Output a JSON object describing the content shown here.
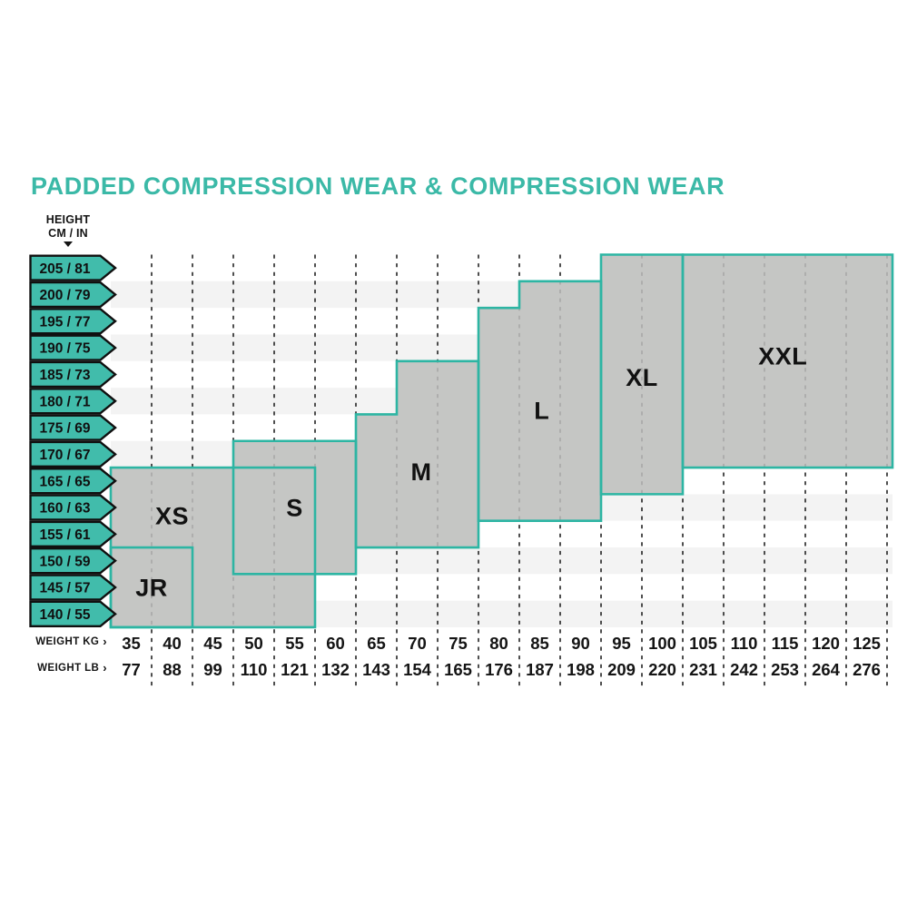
{
  "title": {
    "text": "PADDED COMPRESSION WEAR & COMPRESSION WEAR"
  },
  "chart_data": {
    "type": "size-region-grid",
    "title": "PADDED COMPRESSION WEAR & COMPRESSION WEAR",
    "coordinate_note": "outline vertices are [column_boundary, row_boundary]; columns 0-19 are boundaries between the 19 weight ticks ('R' = right plot edge); rows 0-14 are boundaries between the 14 height rows (row 0 = top, 205/81)",
    "y_axis": {
      "header_line1": "HEIGHT",
      "header_line2": "CM / IN",
      "labels": [
        "205 / 81",
        "200 / 79",
        "195 / 77",
        "190 / 75",
        "185 / 73",
        "180 / 71",
        "175 / 69",
        "170 / 67",
        "165 / 65",
        "160 / 63",
        "155 / 61",
        "150 / 59",
        "145 / 57",
        "140 / 55"
      ]
    },
    "x_axis": {
      "kg_label": "WEIGHT KG",
      "lb_label": "WEIGHT LB",
      "chevron_icon": "›",
      "weight_kg": [
        35,
        40,
        45,
        50,
        55,
        60,
        65,
        70,
        75,
        80,
        85,
        90,
        95,
        100,
        105,
        110,
        115,
        120,
        125
      ],
      "weight_lb": [
        77,
        88,
        99,
        110,
        121,
        132,
        143,
        154,
        165,
        176,
        187,
        198,
        209,
        220,
        231,
        242,
        253,
        264,
        276
      ]
    },
    "sizes": [
      {
        "label": "JR",
        "weight_kg_range": [
          35,
          40
        ],
        "height_cm_range": [
          140,
          150
        ],
        "outline": [
          [
            0,
            11
          ],
          [
            2,
            11
          ],
          [
            2,
            14
          ],
          [
            0,
            14
          ]
        ],
        "label_anchor": [
          1.0,
          12.5
        ]
      },
      {
        "label": "XS",
        "weight_kg_range": [
          35,
          55
        ],
        "height_cm_range": [
          140,
          165
        ],
        "outline": [
          [
            0,
            8
          ],
          [
            5,
            8
          ],
          [
            5,
            14
          ],
          [
            0,
            14
          ]
        ],
        "label_anchor": [
          1.5,
          9.8
        ]
      },
      {
        "label": "S",
        "weight_kg_range": [
          50,
          60
        ],
        "height_cm_range": [
          150,
          170
        ],
        "outline": [
          [
            3,
            7
          ],
          [
            6,
            7
          ],
          [
            6,
            12
          ],
          [
            3,
            12
          ]
        ],
        "label_anchor": [
          4.5,
          9.5
        ]
      },
      {
        "label": "M",
        "weight_kg_range": [
          65,
          75
        ],
        "height_cm_range": [
          155,
          185
        ],
        "outline": [
          [
            6,
            6
          ],
          [
            7,
            6
          ],
          [
            7,
            4
          ],
          [
            9,
            4
          ],
          [
            9,
            11
          ],
          [
            6,
            11
          ]
        ],
        "label_anchor": [
          7.6,
          8.15
        ]
      },
      {
        "label": "L",
        "weight_kg_range": [
          80,
          90
        ],
        "height_cm_range": [
          160,
          200
        ],
        "outline": [
          [
            9,
            2
          ],
          [
            10,
            2
          ],
          [
            10,
            1
          ],
          [
            12,
            1
          ],
          [
            12,
            10
          ],
          [
            9,
            10
          ]
        ],
        "label_anchor": [
          10.55,
          5.85
        ]
      },
      {
        "label": "XL",
        "weight_kg_range": [
          95,
          100
        ],
        "height_cm_range": [
          165,
          205
        ],
        "outline": [
          [
            12,
            0
          ],
          [
            14,
            0
          ],
          [
            14,
            9
          ],
          [
            12,
            9
          ]
        ],
        "label_anchor": [
          13.0,
          4.6
        ]
      },
      {
        "label": "XXL",
        "weight_kg_range": [
          105,
          125
        ],
        "height_cm_range": [
          170,
          205
        ],
        "outline": [
          [
            14,
            0
          ],
          [
            "R",
            0
          ],
          [
            "R",
            8
          ],
          [
            14,
            8
          ]
        ],
        "label_anchor": [
          16.45,
          3.8
        ]
      }
    ],
    "colors": {
      "title_teal": "#3bb9a7",
      "tag_fill": "#41bcab",
      "tag_border": "#101010",
      "region_border": "#2db5a3",
      "region_fill": "#c5c6c4",
      "stripe": "#f3f3f3",
      "dash_dark": "#2f2f2f",
      "dash_light": "#a9a9a9",
      "text_dark": "#141414"
    }
  }
}
